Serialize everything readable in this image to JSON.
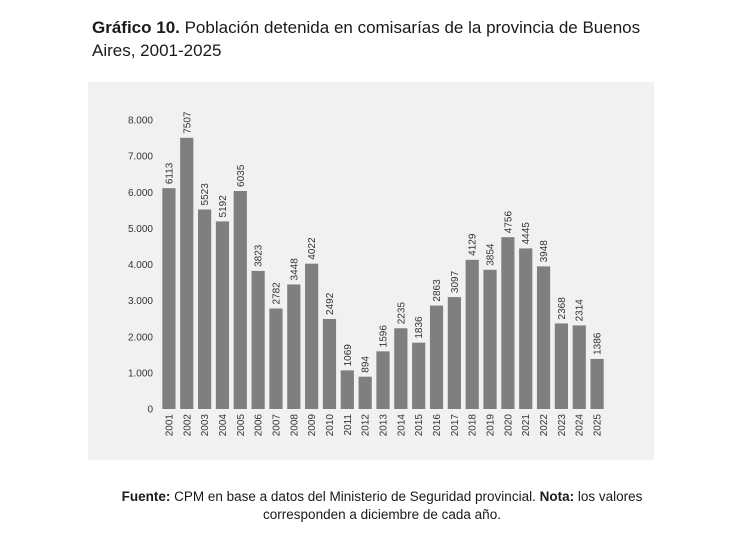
{
  "title": {
    "prefix": "Gráfico 10.",
    "text": " Población detenida en comisarías de la provincia de Buenos Aires, 2001-2025"
  },
  "source": {
    "label": "Fuente:",
    "text": " CPM en base a datos del Ministerio de Seguridad provincial. ",
    "note_label": "Nota:",
    "note_text": " los valores corresponden a diciembre de cada año."
  },
  "chart_data": {
    "type": "bar",
    "title": "",
    "xlabel": "",
    "ylabel": "",
    "categories": [
      "2001",
      "2002",
      "2003",
      "2004",
      "2005",
      "2006",
      "2007",
      "2008",
      "2009",
      "2010",
      "2011",
      "2012",
      "2013",
      "2014",
      "2015",
      "2016",
      "2017",
      "2018",
      "2019",
      "2020",
      "2021",
      "2022",
      "2023",
      "2024",
      "2025"
    ],
    "values": [
      6113,
      7507,
      5523,
      5192,
      6035,
      3823,
      2782,
      3448,
      4022,
      2492,
      1069,
      894,
      1596,
      2235,
      1836,
      2863,
      3097,
      4129,
      3854,
      4756,
      4445,
      3948,
      2368,
      2314,
      1386
    ],
    "ylim": [
      0,
      8000
    ],
    "yticks": [
      0,
      1000,
      2000,
      3000,
      4000,
      5000,
      6000,
      7000,
      8000
    ],
    "ytick_labels": [
      "0",
      "1.000",
      "2.000",
      "3.000",
      "4.000",
      "5.000",
      "6.000",
      "7.000",
      "8.000"
    ],
    "bar_color": "#7f7f7f",
    "grid": false,
    "legend": "none"
  }
}
